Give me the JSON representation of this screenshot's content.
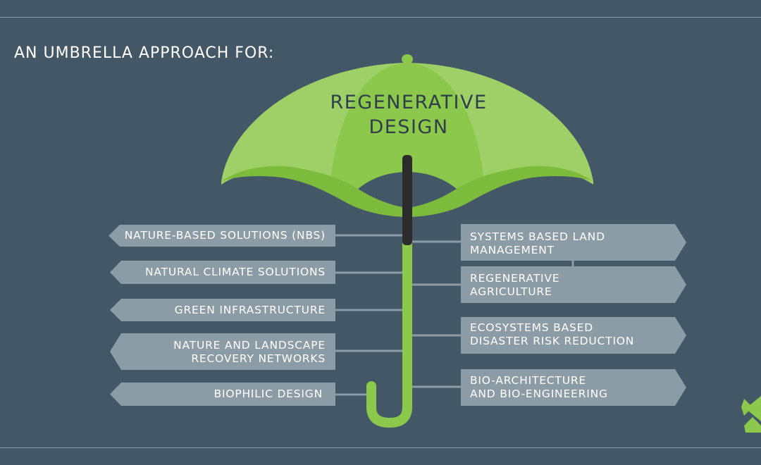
{
  "heading": "AN UMBRELLA APPROACH FOR:",
  "umbrella": {
    "line1": "REGENERATIVE",
    "line2": "DESIGN"
  },
  "left_items": [
    {
      "line1": "NATURE-BASED SOLUTIONS (NBS)",
      "line2": ""
    },
    {
      "line1": "NATURAL CLIMATE SOLUTIONS",
      "line2": ""
    },
    {
      "line1": "GREEN INFRASTRUCTURE",
      "line2": ""
    },
    {
      "line1": "NATURE AND LANDSCAPE",
      "line2": "RECOVERY NETWORKS"
    },
    {
      "line1": "BIOPHILIC DESIGN",
      "line2": ""
    }
  ],
  "right_items": [
    {
      "line1": "SYSTEMS BASED LAND",
      "line2": "MANAGEMENT"
    },
    {
      "line1": "REGENERATIVE",
      "line2": "AGRICULTURE"
    },
    {
      "line1": "ECOSYSTEMS BASED",
      "line2": "DISASTER RISK REDUCTION"
    },
    {
      "line1": "BIO-ARCHITECTURE",
      "line2": "AND BIO-ENGINEERING"
    }
  ],
  "colors": {
    "background": "#435766",
    "canopy_light": "#a3d36d",
    "canopy_mid": "#8cc84b",
    "canopy_dark": "#7dbb3c",
    "tag_fill": "#8c9ca6",
    "shaft_dark": "#2b2b2b",
    "handle": "#8cc84b"
  },
  "icons": {
    "corner_logo": "green-x-logo-icon"
  }
}
